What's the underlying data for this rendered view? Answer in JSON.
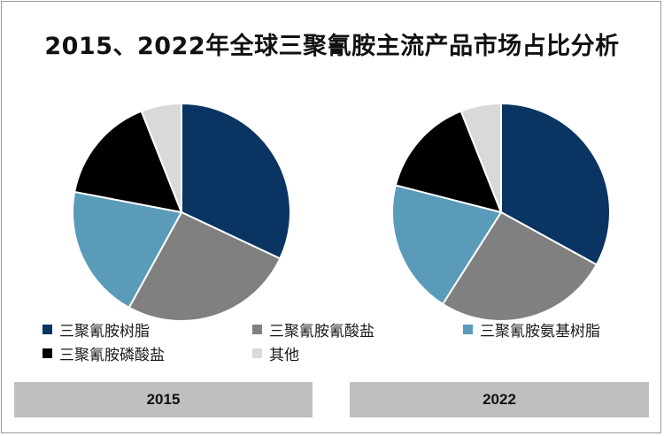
{
  "title": "2015、2022年全球三聚氰胺主流产品市场占比分析",
  "colors": {
    "resin": "#0a3461",
    "cyanurate": "#808080",
    "amino_resin": "#5b9bba",
    "phosphate": "#000000",
    "other": "#d9d9d9"
  },
  "chart_data": [
    {
      "type": "pie",
      "year_label": "2015",
      "categories": [
        "三聚氰胺树脂",
        "三聚氰胺氰酸盐",
        "三聚氰胺氨基树脂",
        "三聚氰胺磷酸盐",
        "其他"
      ],
      "values": [
        32,
        26,
        20,
        16,
        6
      ],
      "legend_placement": "bottom"
    },
    {
      "type": "pie",
      "year_label": "2022",
      "categories": [
        "三聚氰胺树脂",
        "三聚氰胺氰酸盐",
        "三聚氰胺氨基树脂",
        "三聚氰胺磷酸盐",
        "其他"
      ],
      "values": [
        33,
        26,
        20,
        15,
        6
      ],
      "legend_placement": "bottom"
    }
  ],
  "legend": [
    {
      "label": "三聚氰胺树脂",
      "color": "#0a3461"
    },
    {
      "label": "三聚氰胺氰酸盐",
      "color": "#808080"
    },
    {
      "label": "三聚氰胺氨基树脂",
      "color": "#5b9bba"
    },
    {
      "label": "三聚氰胺磷酸盐",
      "color": "#000000"
    },
    {
      "label": "其他",
      "color": "#d9d9d9"
    }
  ]
}
